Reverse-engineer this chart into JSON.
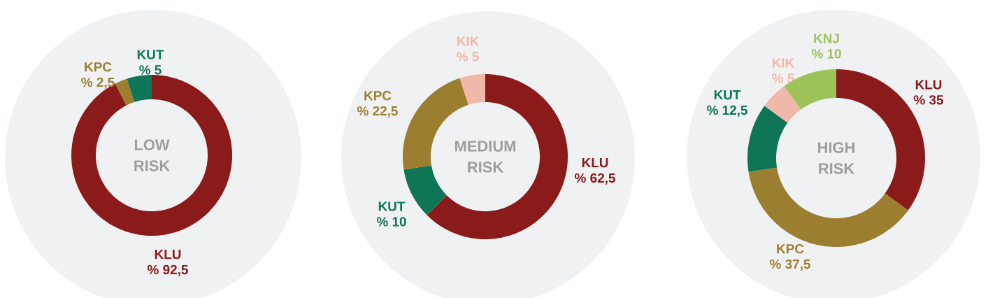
{
  "chart_data": [
    {
      "type": "donut",
      "title": "LOW RISK",
      "categories": [
        "KLU",
        "KPC",
        "KUT"
      ],
      "values": [
        92.5,
        2.5,
        5
      ],
      "colors": [
        "#8b1a1a",
        "#9c7e31",
        "#0e7557"
      ],
      "value_labels": [
        "% 92,5",
        "% 2,5",
        "% 5"
      ]
    },
    {
      "type": "donut",
      "title": "MEDIUM RISK",
      "categories": [
        "KLU",
        "KUT",
        "KPC",
        "KIK"
      ],
      "values": [
        62.5,
        10,
        22.5,
        5
      ],
      "colors": [
        "#8b1a1a",
        "#0e7557",
        "#9c7e31",
        "#f0b8a8"
      ],
      "value_labels": [
        "% 62,5",
        "% 10",
        "% 22,5",
        "% 5"
      ]
    },
    {
      "type": "donut",
      "title": "HIGH RISK",
      "categories": [
        "KLU",
        "KPC",
        "KUT",
        "KIK",
        "KNJ"
      ],
      "values": [
        35,
        37.5,
        12.5,
        5,
        10
      ],
      "colors": [
        "#8b1a1a",
        "#9c7e31",
        "#0e7557",
        "#f0b8a8",
        "#9bc35a"
      ],
      "value_labels": [
        "% 35",
        "% 37,5",
        "% 12,5",
        "% 5",
        "% 10"
      ]
    }
  ]
}
